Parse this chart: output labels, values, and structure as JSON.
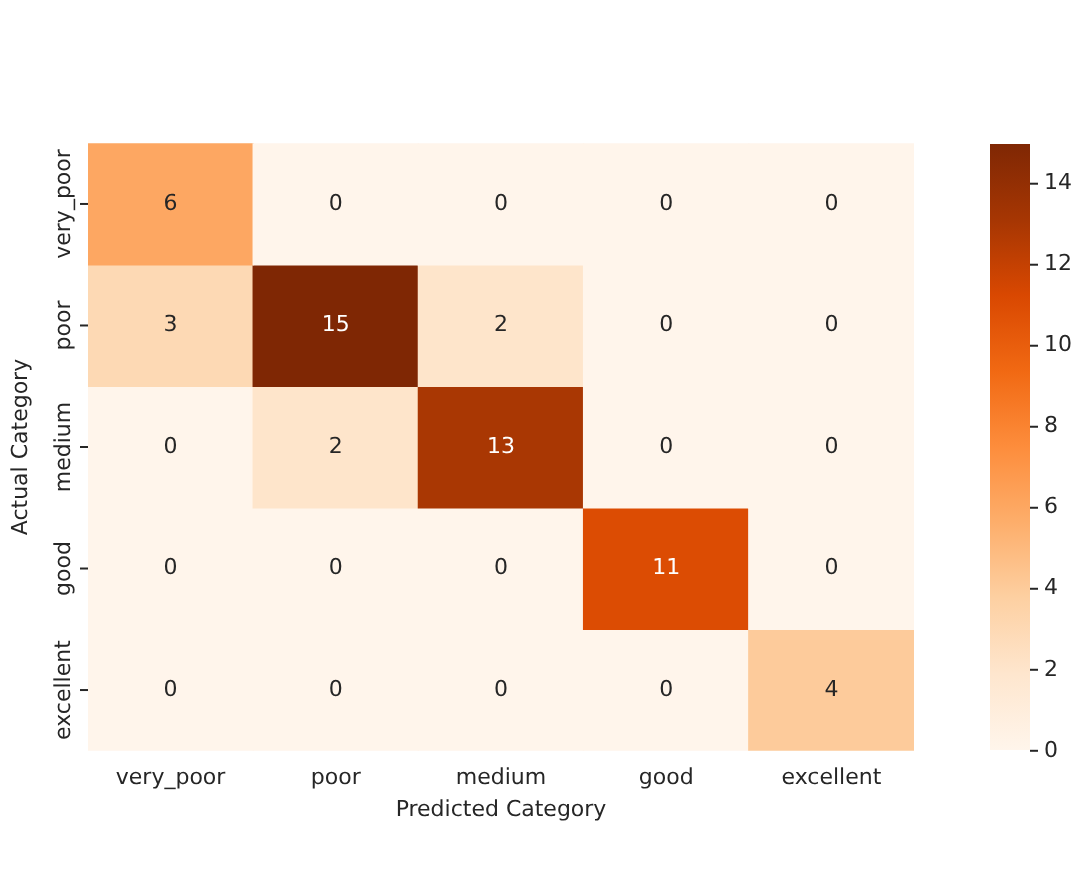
{
  "chart_data": {
    "type": "heatmap",
    "xlabel": "Predicted Category",
    "ylabel": "Actual Category",
    "categories": [
      "very_poor",
      "poor",
      "medium",
      "good",
      "excellent"
    ],
    "y_categories": [
      "very_poor",
      "poor",
      "medium",
      "good",
      "excellent"
    ],
    "cells": [
      [
        6,
        0,
        0,
        0,
        0
      ],
      [
        3,
        15,
        2,
        0,
        0
      ],
      [
        0,
        2,
        13,
        0,
        0
      ],
      [
        0,
        0,
        0,
        11,
        0
      ],
      [
        0,
        0,
        0,
        0,
        4
      ]
    ],
    "clim": [
      0,
      15
    ],
    "cticks": [
      0,
      2,
      4,
      6,
      8,
      10,
      12,
      14
    ],
    "data_labels": true
  }
}
